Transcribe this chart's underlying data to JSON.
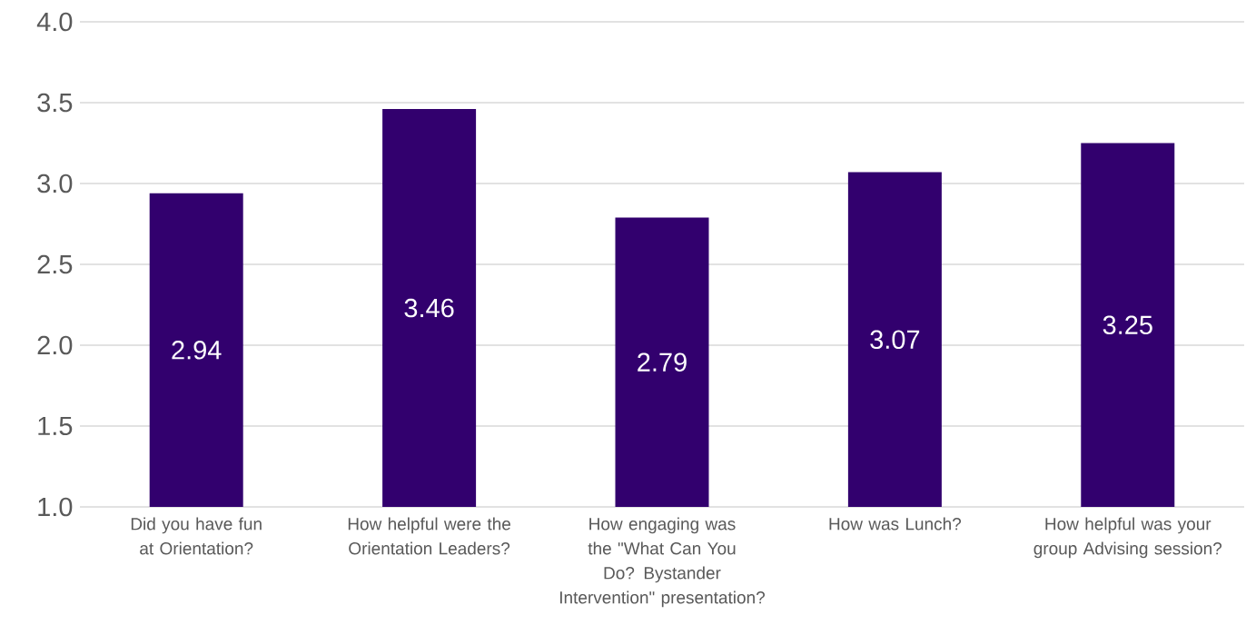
{
  "chart_data": {
    "type": "bar",
    "categories": [
      "Did you have fun at Orientation?",
      "How helpful were the Orientation Leaders?",
      "How engaging was the \"What Can You Do? Bystander Intervention\" presentation?",
      "How was Lunch?",
      "How helpful was your group Advising session?"
    ],
    "values": [
      2.94,
      3.46,
      2.79,
      3.07,
      3.25
    ],
    "color": "#32006e",
    "ylim": [
      1,
      4
    ],
    "yticks": [
      {
        "value": 1,
        "label": "1.0"
      },
      1.5,
      {
        "value": 2,
        "label": "2.0"
      },
      2.5,
      {
        "value": 3,
        "label": "3.0"
      },
      3.5,
      {
        "value": 4,
        "label": "4.0"
      }
    ],
    "grid": "y",
    "data_labels": true
  }
}
